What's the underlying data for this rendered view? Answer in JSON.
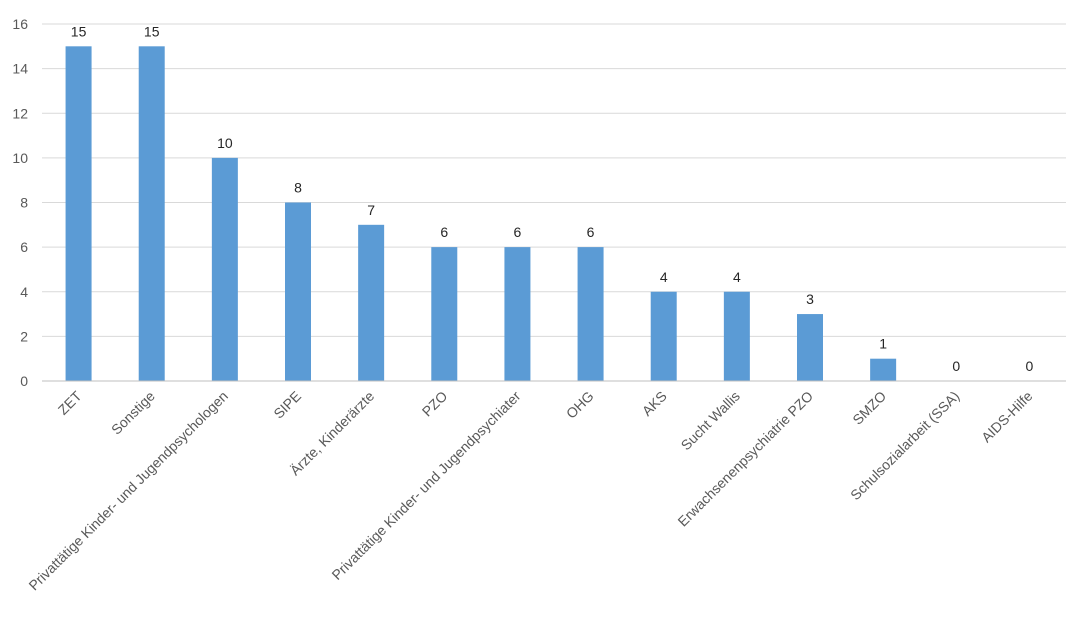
{
  "chart_data": {
    "type": "bar",
    "categories": [
      "ZET",
      "Sonstige",
      "Privattätige Kinder- und Jugendpsychologen",
      "SIPE",
      "Ärzte, Kinderärzte",
      "PZO",
      "Privattätige Kinder- und Jugendpsychiater",
      "OHG",
      "AKS",
      "Sucht Wallis",
      "Erwachsenenpsychiatrie PZO",
      "SMZO",
      "Schulsozialarbeit (SSA)",
      "AIDS-Hilfe"
    ],
    "values": [
      15,
      15,
      10,
      8,
      7,
      6,
      6,
      6,
      4,
      4,
      3,
      1,
      0,
      0
    ],
    "yticks": [
      0,
      2,
      4,
      6,
      8,
      10,
      12,
      14,
      16
    ],
    "ylim": [
      0,
      16
    ],
    "grid": true,
    "bar_color": "#5b9bd5",
    "title": "",
    "xlabel": "",
    "ylabel": ""
  }
}
